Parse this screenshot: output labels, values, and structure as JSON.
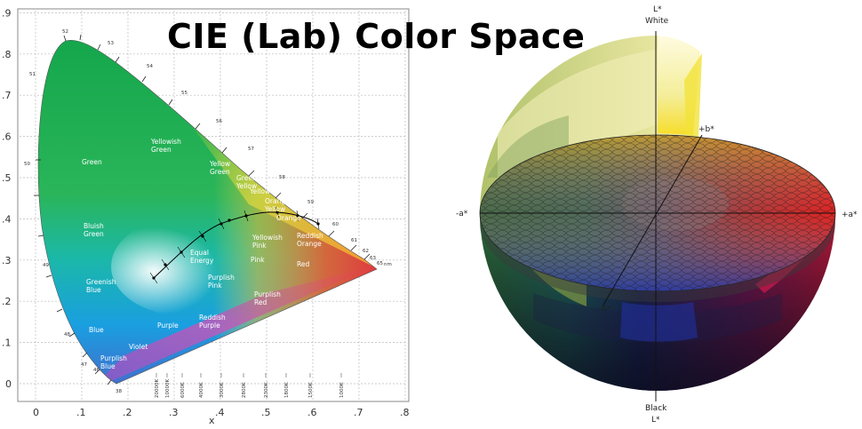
{
  "title": "CIE (Lab) Color Space",
  "chromaticity": {
    "x_label": "x",
    "x_ticks": [
      "0",
      ".1",
      ".2",
      ".3",
      ".4",
      ".5",
      ".6",
      ".7",
      ".8"
    ],
    "y_ticks": [
      "0",
      ".1",
      ".2",
      ".3",
      ".4",
      ".5",
      ".6",
      ".7",
      ".8",
      ".9"
    ],
    "regions": [
      {
        "name": "green",
        "lines": [
          "Green"
        ]
      },
      {
        "name": "yellowish-green",
        "lines": [
          "Yellowish",
          "Green"
        ]
      },
      {
        "name": "yellow-green",
        "lines": [
          "Yellow",
          "Green"
        ]
      },
      {
        "name": "greenish-yellow",
        "lines": [
          "Greenish",
          "Yellow"
        ]
      },
      {
        "name": "yellow",
        "lines": [
          "Yellow"
        ]
      },
      {
        "name": "orange-yellow",
        "lines": [
          "Orange",
          "Yellow"
        ]
      },
      {
        "name": "orange",
        "lines": [
          "Orange"
        ]
      },
      {
        "name": "bluish-green",
        "lines": [
          "Bluish",
          "Green"
        ]
      },
      {
        "name": "yellowish-pink",
        "lines": [
          "Yellowish",
          "Pink"
        ]
      },
      {
        "name": "reddish-orange",
        "lines": [
          "Reddish",
          "Orange"
        ]
      },
      {
        "name": "equal-energy",
        "lines": [
          "Equal",
          "Energy"
        ]
      },
      {
        "name": "pink",
        "lines": [
          "Pink"
        ]
      },
      {
        "name": "red",
        "lines": [
          "Red"
        ]
      },
      {
        "name": "greenish-blue",
        "lines": [
          "Greenish",
          "Blue"
        ]
      },
      {
        "name": "purplish-pink",
        "lines": [
          "Purplish",
          "Pink"
        ]
      },
      {
        "name": "purplish-red",
        "lines": [
          "Purplish",
          "Red"
        ]
      },
      {
        "name": "purple",
        "lines": [
          "Purple"
        ]
      },
      {
        "name": "reddish-purple",
        "lines": [
          "Reddish",
          "Purple"
        ]
      },
      {
        "name": "blue",
        "lines": [
          "Blue"
        ]
      },
      {
        "name": "violet",
        "lines": [
          "Violet"
        ]
      },
      {
        "name": "purplish-blue",
        "lines": [
          "Purplish",
          "Blue"
        ]
      }
    ],
    "wavelengths": [
      "46",
      "47",
      "48",
      "49",
      "50",
      "51",
      "52",
      "53",
      "54",
      "55",
      "56",
      "57",
      "58",
      "59",
      "60",
      "61",
      "62",
      "63",
      "65",
      "38"
    ],
    "wavelength_unit": "nm",
    "temperatures": [
      "20000K",
      "10000K",
      "6000K",
      "4000K",
      "3000K",
      "2800K",
      "2300K",
      "1800K",
      "1500K",
      "1000K"
    ]
  },
  "lab_sphere": {
    "top_axis": "L*",
    "top_label": "White",
    "bottom_label": "Black",
    "bottom_axis": "L*",
    "plus_b": "+b*",
    "minus_b": "-b*",
    "plus_a": "+a*",
    "minus_a": "-a*"
  }
}
